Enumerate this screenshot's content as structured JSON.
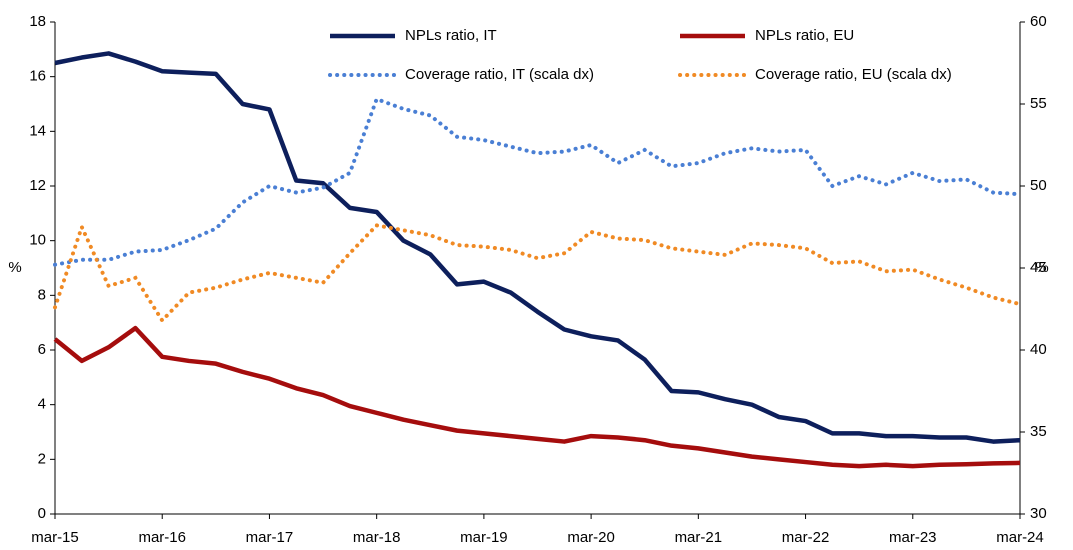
{
  "chart_data": {
    "type": "line",
    "categories": [
      "mar-15",
      null,
      null,
      null,
      "mar-16",
      null,
      null,
      null,
      "mar-17",
      null,
      null,
      null,
      "mar-18",
      null,
      null,
      null,
      "mar-19",
      null,
      null,
      null,
      "mar-20",
      null,
      null,
      null,
      "mar-21",
      null,
      null,
      null,
      "mar-22",
      null,
      null,
      null,
      "mar-23",
      null,
      null,
      null,
      "mar-24"
    ],
    "ylabel": "%",
    "y2label": "%",
    "ylim": [
      0,
      18
    ],
    "yticks": [
      0,
      2,
      4,
      6,
      8,
      10,
      12,
      14,
      16,
      18
    ],
    "y2lim": [
      30,
      60
    ],
    "y2ticks": [
      30,
      35,
      40,
      45,
      50,
      55,
      60
    ],
    "series": [
      {
        "name": "NPLs ratio, IT",
        "color": "#0d1f5c",
        "style": "solid",
        "axis": "y",
        "values": [
          16.5,
          16.7,
          16.85,
          16.55,
          16.2,
          16.15,
          16.1,
          15.0,
          14.8,
          12.2,
          12.1,
          11.2,
          11.05,
          10.0,
          9.5,
          8.4,
          8.5,
          8.1,
          7.4,
          6.75,
          6.5,
          6.35,
          5.65,
          4.5,
          4.45,
          4.2,
          4.0,
          3.55,
          3.4,
          2.95,
          2.95,
          2.85,
          2.85,
          2.8,
          2.8,
          2.65,
          2.7
        ]
      },
      {
        "name": "NPLs ratio, EU",
        "color": "#a50d0d",
        "style": "solid",
        "axis": "y",
        "values": [
          6.4,
          5.6,
          6.1,
          6.8,
          5.75,
          5.6,
          5.5,
          5.2,
          4.95,
          4.6,
          4.35,
          3.95,
          3.7,
          3.45,
          3.25,
          3.05,
          2.95,
          2.85,
          2.75,
          2.65,
          2.85,
          2.8,
          2.7,
          2.5,
          2.4,
          2.25,
          2.1,
          2.0,
          1.9,
          1.8,
          1.75,
          1.8,
          1.75,
          1.8,
          1.82,
          1.85,
          1.87
        ]
      },
      {
        "name": "Coverage ratio, IT (scala dx)",
        "color": "#4a7fd4",
        "style": "dotted",
        "axis": "y2",
        "values": [
          45.2,
          45.5,
          45.5,
          46.0,
          46.1,
          46.7,
          47.4,
          49.0,
          50.0,
          49.6,
          49.9,
          50.8,
          55.3,
          54.7,
          54.3,
          53.0,
          52.8,
          52.4,
          52.0,
          52.1,
          52.5,
          51.4,
          52.2,
          51.2,
          51.4,
          52.0,
          52.3,
          52.1,
          52.2,
          50.0,
          50.6,
          50.1,
          50.8,
          50.3,
          50.4,
          49.6,
          49.5
        ]
      },
      {
        "name": "Coverage ratio, EU (scala dx)",
        "color": "#f08a24",
        "style": "dotted",
        "axis": "y2",
        "values": [
          42.6,
          47.5,
          43.9,
          44.4,
          41.8,
          43.5,
          43.8,
          44.3,
          44.7,
          44.4,
          44.1,
          45.9,
          47.6,
          47.3,
          47.0,
          46.4,
          46.3,
          46.1,
          45.6,
          45.9,
          47.2,
          46.8,
          46.7,
          46.2,
          46.0,
          45.8,
          46.5,
          46.4,
          46.2,
          45.3,
          45.4,
          44.8,
          44.9,
          44.3,
          43.8,
          43.2,
          42.8
        ]
      }
    ]
  }
}
